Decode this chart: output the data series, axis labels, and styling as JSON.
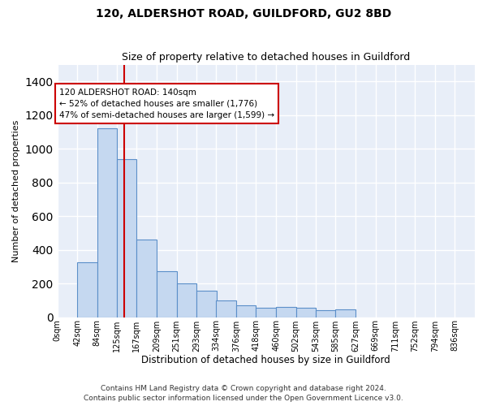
{
  "title": "120, ALDERSHOT ROAD, GUILDFORD, GU2 8BD",
  "subtitle": "Size of property relative to detached houses in Guildford",
  "xlabel": "Distribution of detached houses by size in Guildford",
  "ylabel": "Number of detached properties",
  "bar_color": "#c5d8f0",
  "bar_edge_color": "#5b8fc9",
  "background_color": "#e8eef8",
  "grid_color": "#ffffff",
  "annotation_line_color": "#cc0000",
  "annotation_box_color": "#cc0000",
  "annotation_text": "120 ALDERSHOT ROAD: 140sqm\n← 52% of detached houses are smaller (1,776)\n47% of semi-detached houses are larger (1,599) →",
  "vline_x": 140,
  "categories": [
    "0sqm",
    "42sqm",
    "84sqm",
    "125sqm",
    "167sqm",
    "209sqm",
    "251sqm",
    "293sqm",
    "334sqm",
    "376sqm",
    "418sqm",
    "460sqm",
    "502sqm",
    "543sqm",
    "585sqm",
    "627sqm",
    "669sqm",
    "711sqm",
    "752sqm",
    "794sqm",
    "836sqm"
  ],
  "bin_edges": [
    0,
    42,
    84,
    125,
    167,
    209,
    251,
    293,
    334,
    376,
    418,
    460,
    502,
    543,
    585,
    627,
    669,
    711,
    752,
    794,
    836
  ],
  "bin_width": 42,
  "values": [
    0,
    325,
    1120,
    940,
    460,
    275,
    200,
    155,
    100,
    70,
    55,
    60,
    55,
    40,
    45,
    0,
    0,
    0,
    0,
    0,
    0
  ],
  "ylim": [
    0,
    1500
  ],
  "yticks": [
    0,
    200,
    400,
    600,
    800,
    1000,
    1200,
    1400
  ],
  "footer": "Contains HM Land Registry data © Crown copyright and database right 2024.\nContains public sector information licensed under the Open Government Licence v3.0.",
  "figsize": [
    6.0,
    5.0
  ],
  "dpi": 100
}
